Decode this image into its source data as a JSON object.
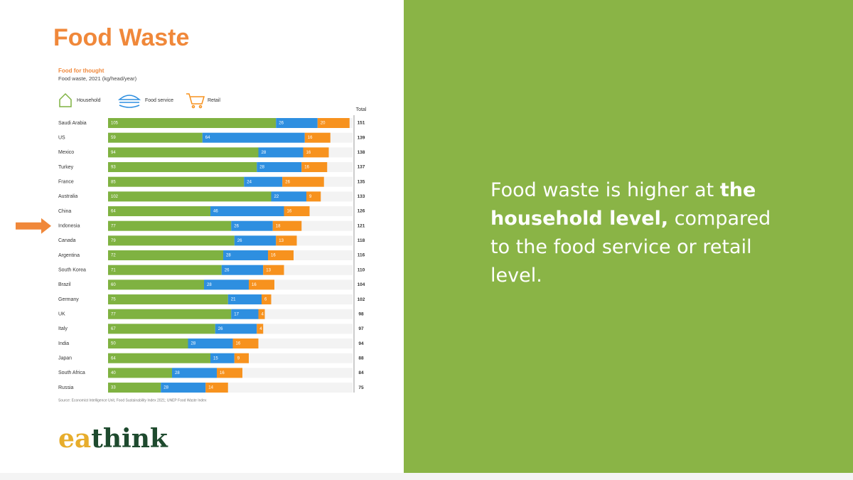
{
  "slide": {
    "title": "Food Waste",
    "panel_text": [
      {
        "text": "Food waste is higher at ",
        "bold": false
      },
      {
        "text": "the household level,",
        "bold": true
      },
      {
        "text": " compared to the food service or retail level.",
        "bold": false
      }
    ],
    "logo": [
      "ea",
      "think"
    ]
  },
  "chart_data": {
    "type": "stacked-bar-horizontal",
    "title": "Food for thought",
    "subtitle": "Food waste, 2021 (kg/head/year)",
    "total_label": "Total",
    "source": "Source: Economist Intelligence Unit, Food Sustainability Index 2021; UNEP Food Waste Index",
    "categories": [
      "Saudi Arabia",
      "US",
      "Mexico",
      "Turkey",
      "France",
      "Australia",
      "China",
      "Indonesia",
      "Canada",
      "Argentina",
      "South Korea",
      "Brazil",
      "Germany",
      "UK",
      "Italy",
      "India",
      "Japan",
      "South Africa",
      "Russia"
    ],
    "series": [
      {
        "name": "Household",
        "color": "#7fb241",
        "values": [
          105,
          59,
          94,
          93,
          85,
          102,
          64,
          77,
          79,
          72,
          71,
          60,
          75,
          77,
          67,
          50,
          64,
          40,
          33
        ]
      },
      {
        "name": "Food service",
        "color": "#2e8fe0",
        "values": [
          26,
          64,
          28,
          28,
          24,
          22,
          46,
          26,
          26,
          28,
          26,
          28,
          21,
          17,
          26,
          28,
          15,
          28,
          28
        ]
      },
      {
        "name": "Retail",
        "color": "#f7921e",
        "values": [
          20,
          16,
          16,
          16,
          26,
          9,
          16,
          18,
          13,
          16,
          13,
          16,
          6,
          4,
          4,
          16,
          9,
          16,
          14
        ]
      }
    ],
    "totals": [
      151,
      139,
      138,
      137,
      135,
      133,
      126,
      121,
      118,
      116,
      110,
      104,
      102,
      98,
      97,
      94,
      88,
      84,
      75
    ],
    "xlim": [
      0,
      160
    ],
    "highlight": "Indonesia",
    "highlight_color": "#f0883a"
  }
}
